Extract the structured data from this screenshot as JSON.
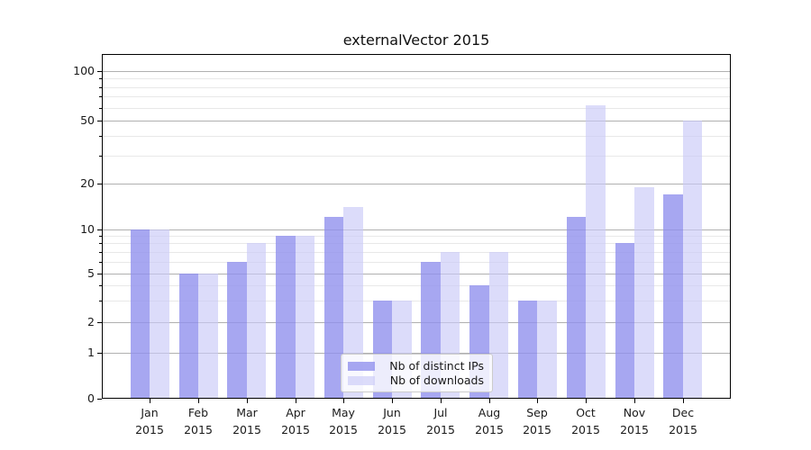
{
  "chart_data": {
    "type": "bar",
    "title": "externalVector 2015",
    "categories": [
      "Jan",
      "Feb",
      "Mar",
      "Apr",
      "May",
      "Jun",
      "Jul",
      "Aug",
      "Sep",
      "Oct",
      "Nov",
      "Dec"
    ],
    "category_year": "2015",
    "series": [
      {
        "name": "Nb of distinct IPs",
        "color": "rgba(145,145,238,0.8)",
        "values": [
          10,
          5,
          6,
          9,
          12,
          3,
          6,
          4,
          3,
          12,
          8,
          17
        ]
      },
      {
        "name": "Nb of downloads",
        "color": "rgba(202,202,247,0.65)",
        "values": [
          10,
          5,
          8,
          9,
          14,
          3,
          7,
          7,
          3,
          62,
          19,
          50
        ]
      }
    ],
    "y_axis": {
      "scale": "log-like (asinh), zero included",
      "major_ticks": [
        0,
        1,
        2,
        5,
        10,
        20,
        50,
        100
      ],
      "minor_ticks": [
        3,
        4,
        6,
        7,
        8,
        9,
        30,
        40,
        60,
        70,
        80,
        90
      ],
      "ylim_top_approx": 128
    },
    "xlabel": "",
    "ylabel": "",
    "legend_position": "lower center",
    "grid": "horizontal major and minor gridlines",
    "colors": {
      "bar_distinct_ips_visible": "#a7a7f1",
      "bar_downloads_visible": "#dcdcfa",
      "major_grid": "#b0b0b0",
      "minor_grid": "#e8e8e8",
      "spine": "#000000",
      "background": "#ffffff",
      "text": "#1a1a1a"
    }
  }
}
